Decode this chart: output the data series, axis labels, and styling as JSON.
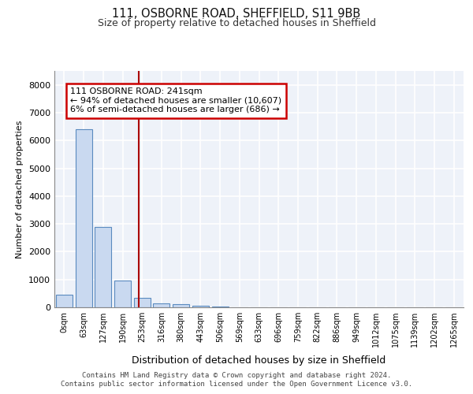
{
  "title1": "111, OSBORNE ROAD, SHEFFIELD, S11 9BB",
  "title2": "Size of property relative to detached houses in Sheffield",
  "xlabel": "Distribution of detached houses by size in Sheffield",
  "ylabel": "Number of detached properties",
  "bin_labels": [
    "0sqm",
    "63sqm",
    "127sqm",
    "190sqm",
    "253sqm",
    "316sqm",
    "380sqm",
    "443sqm",
    "506sqm",
    "569sqm",
    "633sqm",
    "696sqm",
    "759sqm",
    "822sqm",
    "886sqm",
    "949sqm",
    "1012sqm",
    "1075sqm",
    "1139sqm",
    "1202sqm",
    "1265sqm"
  ],
  "bar_values": [
    450,
    6400,
    2900,
    950,
    350,
    150,
    100,
    60,
    20,
    0,
    0,
    0,
    0,
    0,
    0,
    0,
    0,
    0,
    0,
    0,
    0
  ],
  "bar_color": "#c9d9f0",
  "bar_edge_color": "#5a8abf",
  "vline_color": "#aa0000",
  "annotation_text": "111 OSBORNE ROAD: 241sqm\n← 94% of detached houses are smaller (10,607)\n6% of semi-detached houses are larger (686) →",
  "annotation_box_color": "#cc0000",
  "ylim": [
    0,
    8500
  ],
  "yticks": [
    0,
    1000,
    2000,
    3000,
    4000,
    5000,
    6000,
    7000,
    8000
  ],
  "footer1": "Contains HM Land Registry data © Crown copyright and database right 2024.",
  "footer2": "Contains public sector information licensed under the Open Government Licence v3.0.",
  "background_color": "#eef2f9",
  "grid_color": "#ffffff",
  "bin_width": 63
}
